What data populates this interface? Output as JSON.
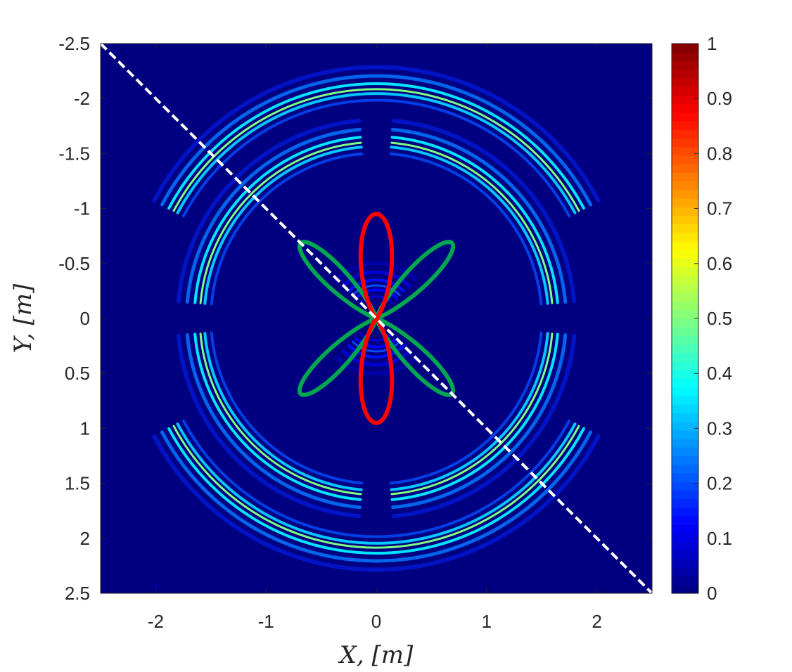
{
  "chart_data": {
    "type": "heatmap",
    "title": "",
    "xlabel": "X,  [m]",
    "ylabel": "Y,  [m]",
    "xlim": [
      -2.5,
      2.5
    ],
    "ylim": [
      -2.5,
      2.5
    ],
    "y_axis_direction": "reversed",
    "x_ticks": [
      -2,
      -1,
      0,
      1,
      2
    ],
    "x_tick_labels": [
      "-2",
      "-1",
      "0",
      "1",
      "2"
    ],
    "y_ticks": [
      -2.5,
      -2,
      -1.5,
      -1,
      -0.5,
      0,
      0.5,
      1,
      1.5,
      2,
      2.5
    ],
    "y_tick_labels": [
      "-2.5",
      "-2",
      "-1.5",
      "-1",
      "-0.5",
      "0",
      "0.5",
      "1",
      "1.5",
      "2",
      "2.5"
    ],
    "colormap": "jet",
    "colorbar": {
      "range": [
        0,
        1
      ],
      "ticks": [
        0,
        0.1,
        0.2,
        0.3,
        0.4,
        0.5,
        0.6,
        0.7,
        0.8,
        0.9,
        1
      ],
      "tick_labels": [
        "0",
        "0.1",
        "0.2",
        "0.3",
        "0.4",
        "0.5",
        "0.6",
        "0.7",
        "0.8",
        "0.9",
        "1"
      ]
    },
    "background_value": 0,
    "wave_rings": [
      {
        "radius_m": 2.08,
        "peak_value": 0.5,
        "arc_center_deg": [
          90,
          270
        ],
        "half_span_deg": 62
      },
      {
        "radius_m": 1.6,
        "peak_value": 0.5,
        "arc_center_deg": [
          45,
          135,
          225,
          315
        ],
        "half_span_deg": 40
      },
      {
        "radius_m": 0.3,
        "peak_value": 0.2,
        "arc_center_deg": [
          90,
          270
        ],
        "half_span_deg": 45
      }
    ],
    "overlays": [
      {
        "name": "",
        "type": "polar-lobes",
        "color": "#00a650",
        "lobe_count": 4,
        "lobe_axes_deg": [
          45,
          135,
          225,
          315
        ],
        "max_radius_m": 0.97
      },
      {
        "name": "",
        "type": "polar-lobes",
        "color": "#ff0000",
        "lobe_count": 2,
        "lobe_axes_deg": [
          90,
          270
        ],
        "max_radius_m": 0.95
      },
      {
        "name": "",
        "type": "dashed-line",
        "color": "#ffffff",
        "x": [
          -2.5,
          2.5
        ],
        "y": [
          -2.5,
          2.5
        ]
      }
    ],
    "grid": false,
    "legend": "none"
  }
}
